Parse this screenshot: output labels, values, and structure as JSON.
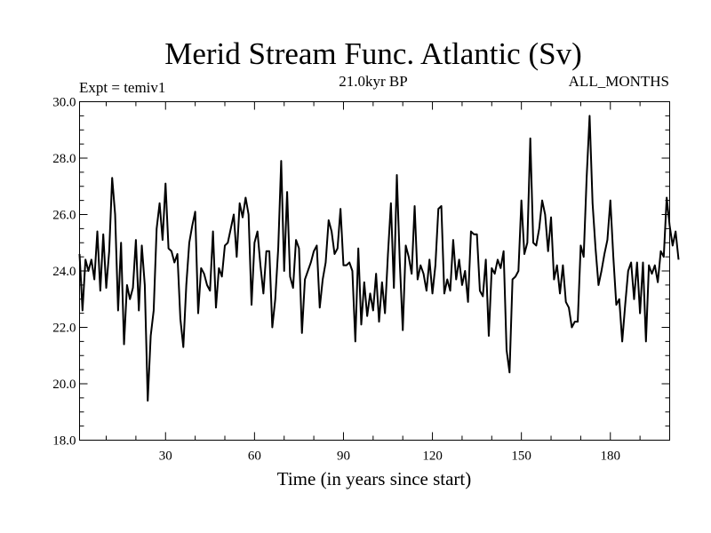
{
  "chart_data": {
    "type": "line",
    "title": "Merid Stream Func. Atlantic (Sv)",
    "left_label": "Expt = temiv1",
    "center_label": "21.0kyr BP",
    "right_label": "ALL_MONTHS",
    "xlabel": "Time (in years since start)",
    "ylabel": "",
    "xlim": [
      1,
      200
    ],
    "ylim": [
      18.0,
      30.0
    ],
    "xticks": [
      30,
      60,
      90,
      120,
      150,
      180
    ],
    "yticks": [
      18.0,
      20.0,
      22.0,
      24.0,
      26.0,
      28.0,
      30.0
    ],
    "ytick_labels": [
      "18.0",
      "20.0",
      "22.0",
      "24.0",
      "26.0",
      "28.0",
      "30.0"
    ],
    "series": [
      {
        "name": "Merid Stream Func. Atlantic",
        "x_start": 1,
        "x_step": 1,
        "values": [
          24.6,
          22.6,
          24.4,
          24.0,
          24.4,
          23.7,
          25.4,
          23.3,
          25.3,
          23.4,
          24.7,
          27.3,
          26.0,
          22.6,
          25.0,
          21.4,
          23.5,
          23.0,
          23.4,
          25.1,
          22.6,
          24.9,
          23.5,
          19.4,
          21.7,
          22.6,
          25.5,
          26.4,
          25.1,
          27.1,
          24.8,
          24.7,
          24.3,
          24.6,
          22.3,
          21.3,
          23.5,
          25.0,
          25.6,
          26.1,
          22.5,
          24.1,
          23.9,
          23.5,
          23.3,
          25.4,
          22.7,
          24.1,
          23.8,
          24.9,
          25.0,
          25.5,
          26.0,
          24.5,
          26.4,
          25.9,
          26.6,
          26.0,
          22.8,
          25.0,
          25.4,
          24.2,
          23.2,
          24.7,
          24.7,
          22.0,
          23.0,
          24.8,
          27.9,
          24.0,
          26.8,
          23.8,
          23.4,
          25.1,
          24.8,
          21.8,
          23.7,
          24.0,
          24.3,
          24.7,
          24.9,
          22.7,
          23.7,
          24.3,
          25.8,
          25.4,
          24.6,
          24.8,
          26.2,
          24.2,
          24.2,
          24.3,
          24.0,
          21.5,
          24.8,
          22.1,
          23.6,
          22.4,
          23.2,
          22.6,
          23.9,
          22.2,
          23.6,
          22.5,
          24.6,
          26.4,
          23.4,
          27.4,
          24.3,
          21.9,
          24.9,
          24.5,
          23.9,
          26.3,
          23.7,
          24.2,
          23.9,
          23.3,
          24.4,
          23.2,
          24.2,
          26.2,
          26.3,
          23.2,
          23.7,
          23.3,
          25.1,
          23.7,
          24.4,
          23.5,
          24.0,
          22.9,
          25.4,
          25.3,
          25.3,
          23.3,
          23.1,
          24.4,
          21.7,
          24.1,
          23.9,
          24.4,
          24.1,
          24.7,
          21.2,
          20.4,
          23.7,
          23.8,
          24.0,
          26.5,
          24.6,
          25.0,
          28.7,
          25.0,
          24.9,
          25.5,
          26.5,
          26.0,
          24.7,
          25.9,
          23.7,
          24.2,
          23.2,
          24.2,
          22.9,
          22.7,
          22.0,
          22.2,
          22.2,
          24.9,
          24.5,
          27.3,
          29.5,
          26.4,
          24.8,
          23.5,
          24.0,
          24.6,
          25.1,
          26.5,
          24.5,
          22.8,
          23.0,
          21.5,
          22.8,
          24.0,
          24.3,
          23.0,
          24.3,
          22.5,
          24.3,
          21.5,
          24.2,
          23.9,
          24.2,
          23.6,
          24.7,
          24.5,
          26.6,
          25.6,
          24.9,
          25.4,
          24.4
        ]
      }
    ]
  }
}
